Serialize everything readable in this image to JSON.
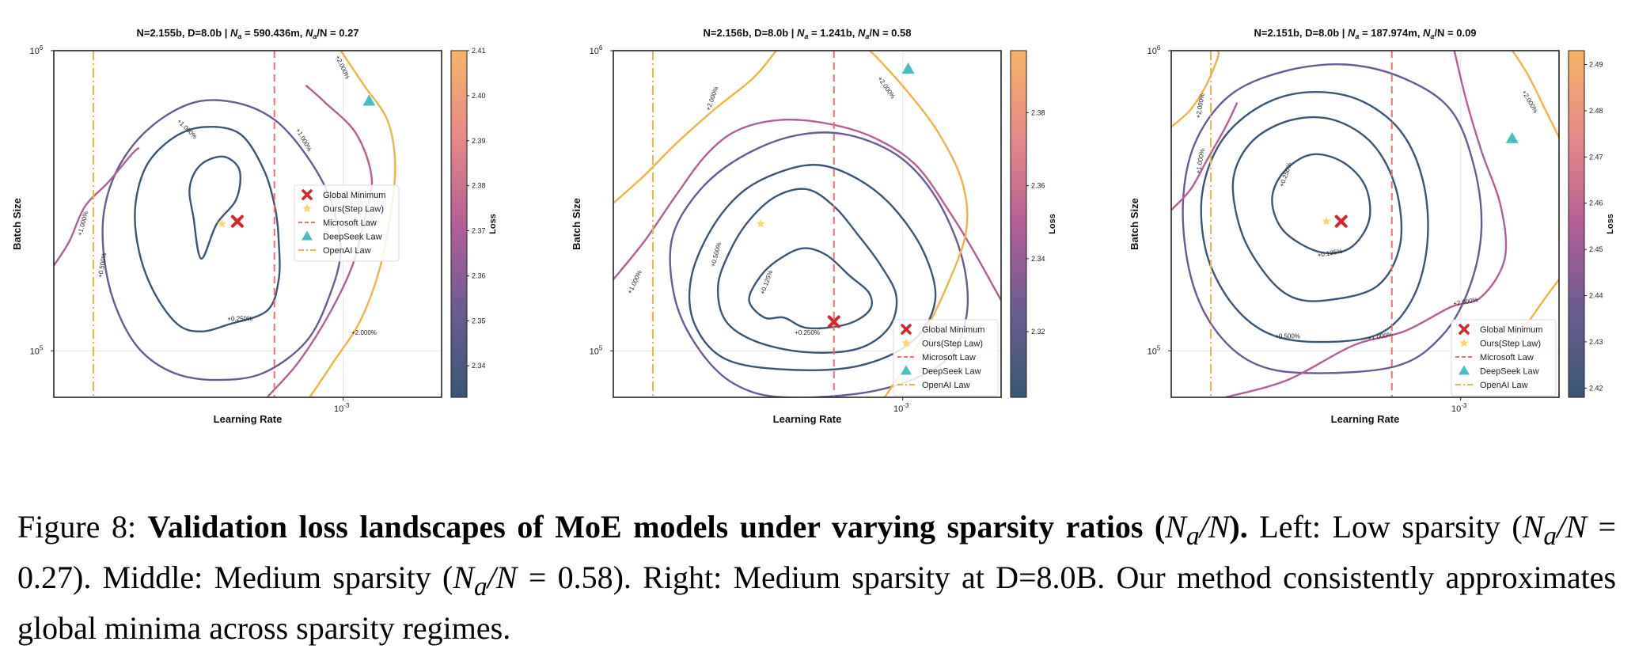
{
  "chart_data": [
    {
      "type": "contour",
      "title": "N=2.155b, D=8.0b | N_a = 590.436m, N_a/N = 0.27",
      "title_parts": {
        "a": "N=2.155b, D=8.0b | ",
        "b": "N",
        "c": "a",
        "d": " = 590.436m, ",
        "e": "N",
        "f": "a",
        "g": "/N = 0.27"
      },
      "xlabel": "Learning Rate",
      "ylabel": "Batch Size",
      "xscale": "log",
      "yscale": "log",
      "xlim": [
        0.00021,
        0.0017
      ],
      "ylim": [
        70000,
        1000000
      ],
      "xticks": [
        {
          "value": 0.001,
          "base": "10",
          "exp": "-3"
        }
      ],
      "yticks": [
        {
          "value": 100000,
          "base": "10",
          "exp": "5"
        },
        {
          "value": 1000000,
          "base": "10",
          "exp": "6"
        }
      ],
      "colorbar": {
        "label": "Loss",
        "min": 2.333,
        "max": 2.41,
        "ticks": [
          "2.34",
          "2.35",
          "2.36",
          "2.37",
          "2.38",
          "2.39",
          "2.40",
          "2.41"
        ]
      },
      "contour_labels": [
        "+0.250%",
        "+1.000%",
        "+0.500%",
        "+1.000%",
        "+1.000%",
        "+2.000%",
        "+2.000%"
      ],
      "points": {
        "global_minimum": {
          "lr": 0.000565,
          "bs": 270000
        },
        "ours": {
          "lr": 0.00052,
          "bs": 265000
        },
        "deepseek": {
          "lr": 0.00115,
          "bs": 680000
        }
      },
      "microsoft_lr": 0.00069,
      "openai_lr": 0.00026,
      "legend": {
        "position": "center-right",
        "entries": [
          "Global Minimum",
          "Ours(Step Law)",
          "Microsoft Law",
          "DeepSeek Law",
          "OpenAI Law"
        ]
      },
      "grid": true
    },
    {
      "type": "contour",
      "title": "N=2.156b, D=8.0b | N_a = 1.241b, N_a/N = 0.58",
      "title_parts": {
        "a": "N=2.156b, D=8.0b | ",
        "b": "N",
        "c": "a",
        "d": " = 1.241b, ",
        "e": "N",
        "f": "a",
        "g": "/N = 0.58"
      },
      "xlabel": "Learning Rate",
      "ylabel": "Batch Size",
      "xscale": "log",
      "yscale": "log",
      "xlim": [
        0.00021,
        0.0017
      ],
      "ylim": [
        70000,
        1000000
      ],
      "xticks": [
        {
          "value": 0.001,
          "base": "10",
          "exp": "-3"
        }
      ],
      "yticks": [
        {
          "value": 100000,
          "base": "10",
          "exp": "5"
        },
        {
          "value": 1000000,
          "base": "10",
          "exp": "6"
        }
      ],
      "colorbar": {
        "label": "Loss",
        "min": 2.302,
        "max": 2.397,
        "ticks": [
          "2.32",
          "2.34",
          "2.36",
          "2.38"
        ]
      },
      "contour_labels": [
        "+0.125%",
        "+0.500%",
        "+0.250%",
        "+1.000%",
        "+2.000%",
        "+2.000%"
      ],
      "points": {
        "global_minimum": {
          "lr": 0.00069,
          "bs": 125000
        },
        "ours": {
          "lr": 0.000465,
          "bs": 265000
        },
        "deepseek": {
          "lr": 0.00103,
          "bs": 870000
        }
      },
      "microsoft_lr": 0.00069,
      "openai_lr": 0.00026,
      "legend": {
        "position": "lower-right",
        "entries": [
          "Global Minimum",
          "Ours(Step Law)",
          "Microsoft Law",
          "DeepSeek Law",
          "OpenAI Law"
        ]
      },
      "grid": true
    },
    {
      "type": "contour",
      "title": "N=2.151b, D=8.0b | N_a = 187.974m, N_a/N = 0.09",
      "title_parts": {
        "a": "N=2.151b, D=8.0b | ",
        "b": "N",
        "c": "a",
        "d": " = 187.974m, ",
        "e": "N",
        "f": "a",
        "g": "/N = 0.09"
      },
      "xlabel": "Learning Rate",
      "ylabel": "Batch Size",
      "xscale": "log",
      "yscale": "log",
      "xlim": [
        0.00021,
        0.0017
      ],
      "ylim": [
        70000,
        1000000
      ],
      "xticks": [
        {
          "value": 0.001,
          "base": "10",
          "exp": "-3"
        }
      ],
      "yticks": [
        {
          "value": 100000,
          "base": "10",
          "exp": "5"
        },
        {
          "value": 1000000,
          "base": "10",
          "exp": "6"
        }
      ],
      "colorbar": {
        "label": "Loss",
        "min": 2.418,
        "max": 2.493,
        "ticks": [
          "2.42",
          "2.43",
          "2.44",
          "2.45",
          "2.46",
          "2.47",
          "2.48",
          "2.49"
        ]
      },
      "contour_labels": [
        "+0.250%",
        "+0.125%",
        "+0.500%",
        "+1.000%",
        "+2.000%",
        "+1.000%",
        "+2.000%",
        "+2.000%"
      ],
      "points": {
        "global_minimum": {
          "lr": 0.000525,
          "bs": 270000
        },
        "ours": {
          "lr": 0.000485,
          "bs": 270000
        },
        "deepseek": {
          "lr": 0.00132,
          "bs": 510000
        }
      },
      "microsoft_lr": 0.00069,
      "openai_lr": 0.00026,
      "legend": {
        "position": "lower-right",
        "entries": [
          "Global Minimum",
          "Ours(Step Law)",
          "Microsoft Law",
          "DeepSeek Law",
          "OpenAI Law"
        ]
      },
      "grid": true
    }
  ],
  "caption": {
    "prefix": "Figure 8: ",
    "bold": "Validation loss landscapes of MoE models under varying sparsity ratios (",
    "bold_math": "N",
    "bold_math_sub": "a",
    "bold_math2": "/N",
    "bold_end": ").",
    "rest1": " Left: Low sparsity (",
    "m1": "N",
    "m1sub": "a",
    "m1b": "/N",
    "m1c": " = 0.27",
    "rest2": "). Middle: Medium sparsity (",
    "m2c": " = 0.58",
    "rest3": "). Right: Medium sparsity at D=8.0B. Our method consistently approximates global minima across sparsity regimes."
  },
  "colors": {
    "global_minimum": "#d62728",
    "ours": "#f7d774",
    "microsoft": "#ee6f6f",
    "deepseek": "#4bbfbf",
    "openai": "#f2b14a",
    "colormap": [
      "#3b5774",
      "#6a5c92",
      "#b45f96",
      "#e68a87",
      "#f6b368"
    ]
  }
}
